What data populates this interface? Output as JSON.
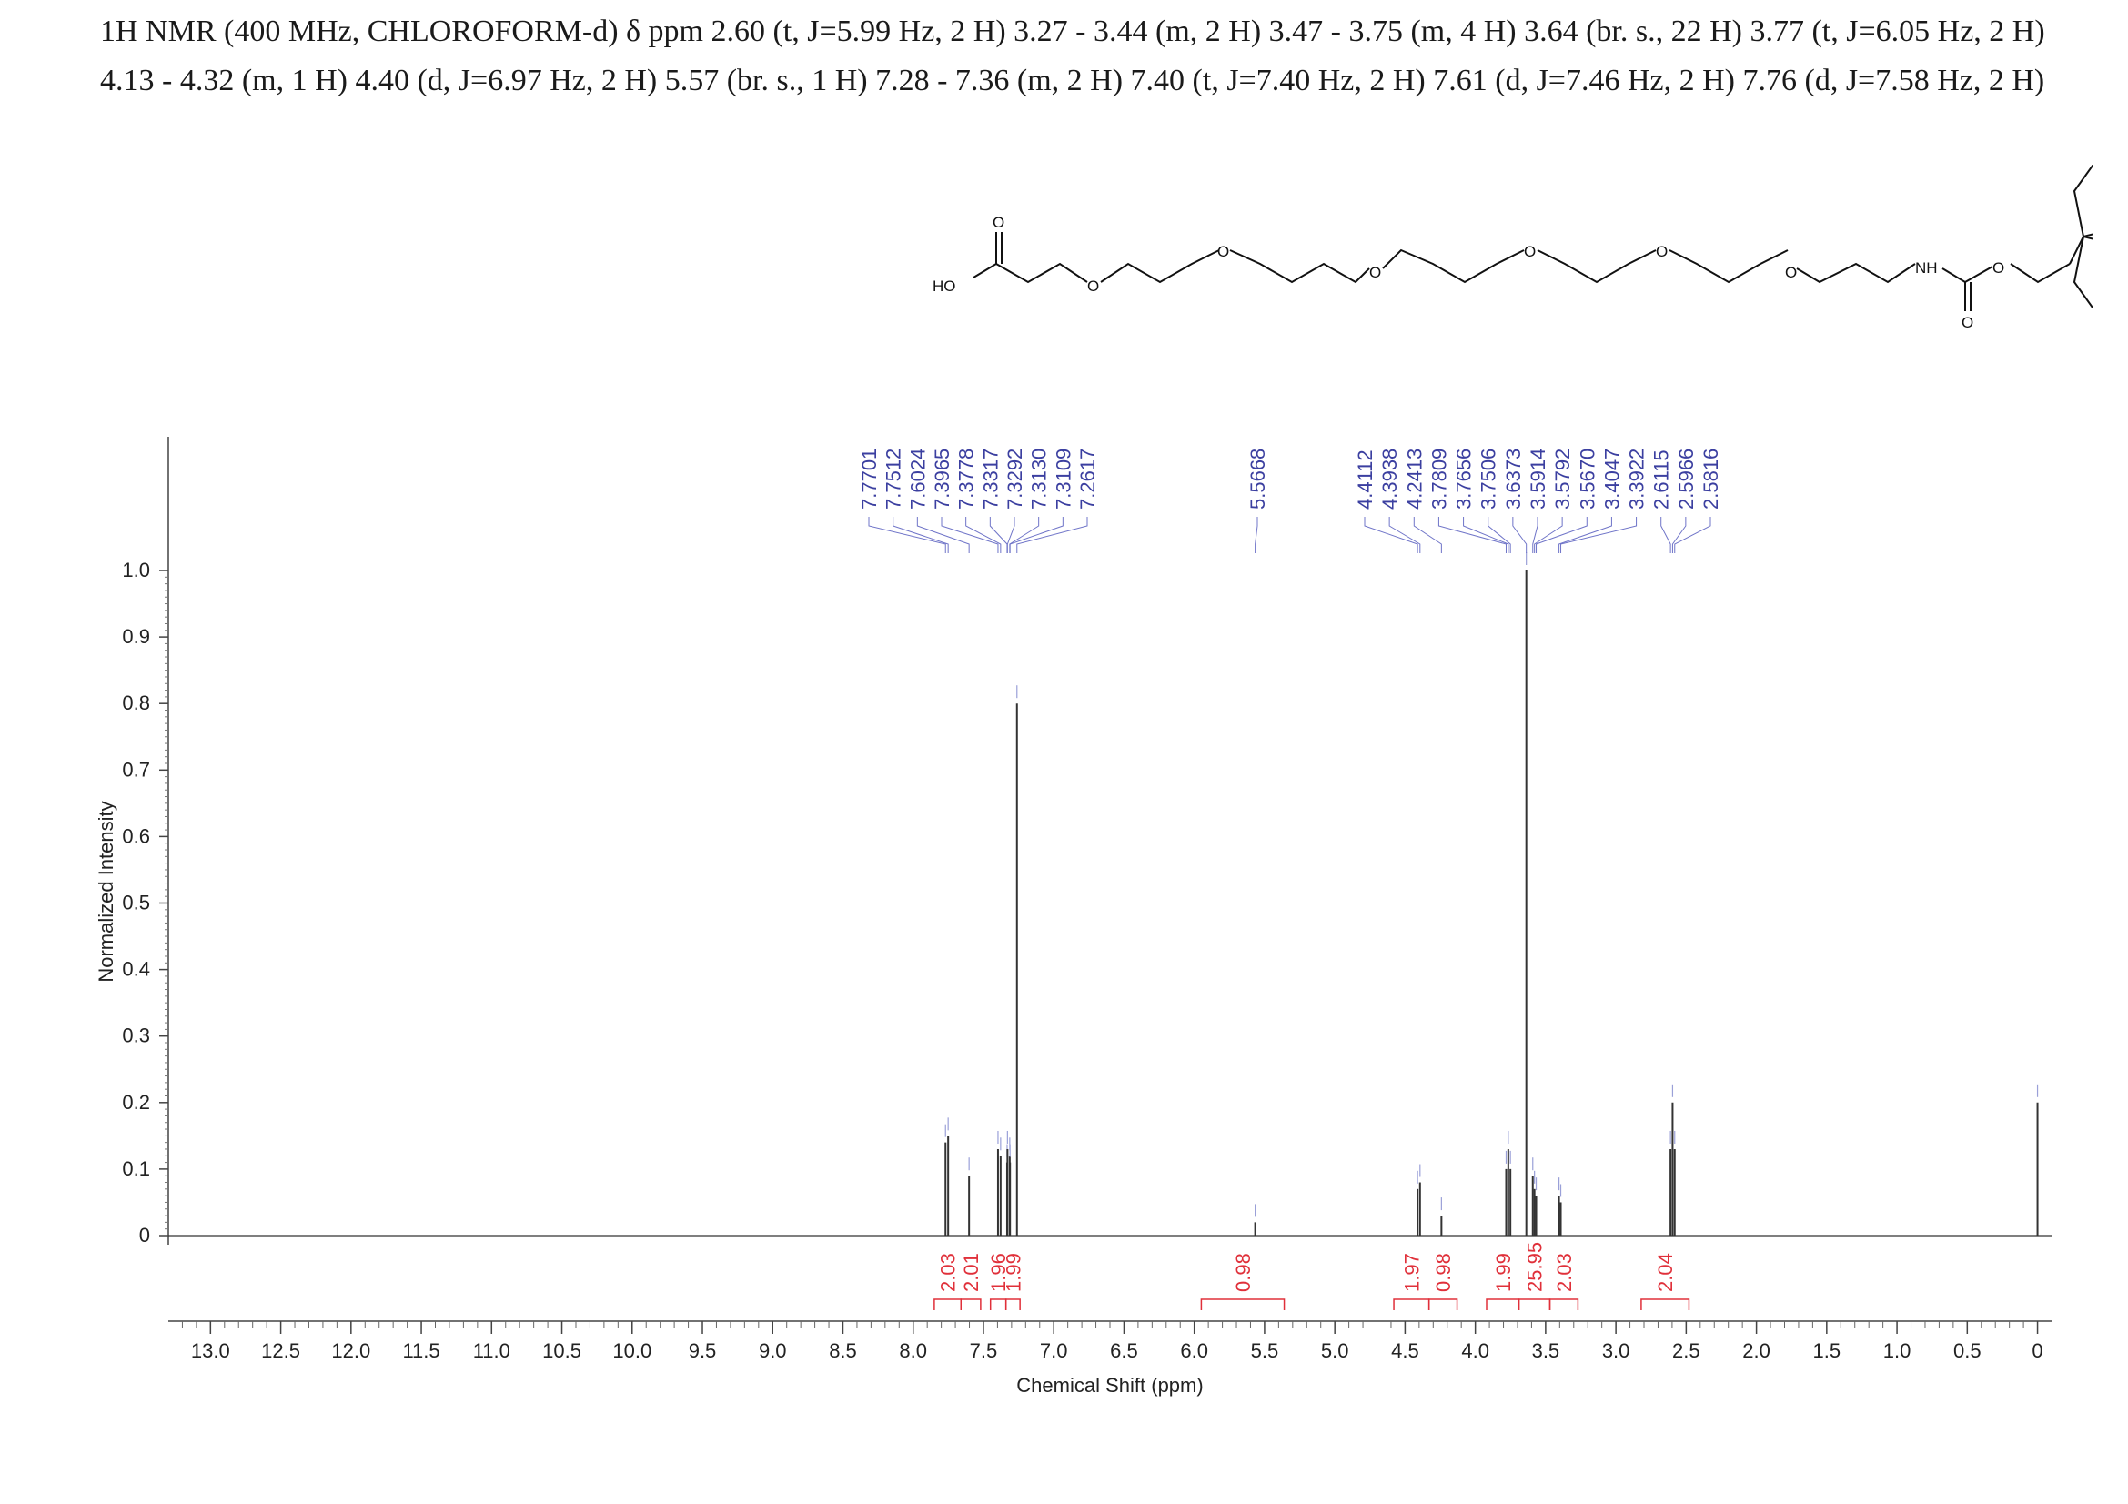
{
  "header": {
    "line1": "1H NMR (400 MHz, CHLOROFORM-d) δ ppm 2.60 (t, J=5.99 Hz, 2 H) 3.27 - 3.44 (m, 2 H) 3.47 - 3.75 (m, 4 H) 3.64 (br. s., 22 H) 3.77 (t,  J=6.05 Hz, 2 H)",
    "line2": "4.13 - 4.32 (m, 1 H) 4.40 (d, J=6.97 Hz, 2 H) 5.57 (br. s., 1 H) 7.28 - 7.36 (m, 2 H) 7.40 (t,  J=7.40 Hz, 2 H) 7.61 (d, J=7.46 Hz, 2 H) 7.76 (d, J=7.58 Hz, 2 H)"
  },
  "structure": {
    "atoms": {
      "ho": "HO",
      "o": "O",
      "nh": "NH"
    }
  },
  "chart_data": {
    "type": "line",
    "xlabel": "Chemical Shift (ppm)",
    "ylabel": "Normalized Intensity",
    "xlim": [
      13.3,
      -0.1
    ],
    "ylim": [
      0,
      1.0
    ],
    "x_reversed": true,
    "x_ticks": [
      "13.0",
      "12.5",
      "12.0",
      "11.5",
      "11.0",
      "10.5",
      "10.0",
      "9.5",
      "9.0",
      "8.5",
      "8.0",
      "7.5",
      "7.0",
      "6.5",
      "6.0",
      "5.5",
      "5.0",
      "4.5",
      "4.0",
      "3.5",
      "3.0",
      "2.5",
      "2.0",
      "1.5",
      "1.0",
      "0.5",
      "0"
    ],
    "y_ticks": [
      "0",
      "0.1",
      "0.2",
      "0.3",
      "0.4",
      "0.5",
      "0.6",
      "0.7",
      "0.8",
      "0.9",
      "1.0"
    ],
    "peaks": [
      {
        "x": 7.7701,
        "y": 0.14
      },
      {
        "x": 7.7512,
        "y": 0.15
      },
      {
        "x": 7.6024,
        "y": 0.09
      },
      {
        "x": 7.3965,
        "y": 0.13
      },
      {
        "x": 7.3778,
        "y": 0.12
      },
      {
        "x": 7.3317,
        "y": 0.11
      },
      {
        "x": 7.3292,
        "y": 0.13
      },
      {
        "x": 7.313,
        "y": 0.12
      },
      {
        "x": 7.3109,
        "y": 0.11
      },
      {
        "x": 7.2617,
        "y": 0.8
      },
      {
        "x": 5.5668,
        "y": 0.02
      },
      {
        "x": 4.4112,
        "y": 0.07
      },
      {
        "x": 4.3938,
        "y": 0.08
      },
      {
        "x": 4.2413,
        "y": 0.03
      },
      {
        "x": 3.7809,
        "y": 0.1
      },
      {
        "x": 3.7656,
        "y": 0.13
      },
      {
        "x": 3.7506,
        "y": 0.1
      },
      {
        "x": 3.6373,
        "y": 1.0
      },
      {
        "x": 3.5914,
        "y": 0.09
      },
      {
        "x": 3.5792,
        "y": 0.07
      },
      {
        "x": 3.567,
        "y": 0.06
      },
      {
        "x": 3.4047,
        "y": 0.06
      },
      {
        "x": 3.3922,
        "y": 0.05
      },
      {
        "x": 2.6115,
        "y": 0.13
      },
      {
        "x": 2.5966,
        "y": 0.2
      },
      {
        "x": 2.5816,
        "y": 0.13
      },
      {
        "x": 0.0,
        "y": 0.2
      }
    ],
    "peak_labels": [
      {
        "group": 1,
        "labels": [
          "7.7701",
          "7.7512",
          "7.6024",
          "7.3965",
          "7.3778",
          "7.3317",
          "7.3292",
          "7.3130",
          "7.3109",
          "7.2617"
        ]
      },
      {
        "group": 2,
        "labels": [
          "5.5668"
        ]
      },
      {
        "group": 3,
        "labels": [
          "4.4112",
          "4.3938",
          "4.2413",
          "3.7809",
          "3.7656",
          "3.7506",
          "3.6373",
          "3.5914",
          "3.5792",
          "3.5670",
          "3.4047",
          "3.3922",
          "2.6115",
          "2.5966",
          "2.5816"
        ]
      }
    ],
    "integrals": [
      {
        "label": "2.03",
        "from": 7.85,
        "to": 7.66
      },
      {
        "label": "2.01",
        "from": 7.66,
        "to": 7.52
      },
      {
        "label": "1.96",
        "from": 7.45,
        "to": 7.34
      },
      {
        "label": "1.99",
        "from": 7.34,
        "to": 7.24
      },
      {
        "label": "0.98",
        "from": 5.95,
        "to": 5.36
      },
      {
        "label": "1.97",
        "from": 4.58,
        "to": 4.33
      },
      {
        "label": "0.98",
        "from": 4.33,
        "to": 4.13
      },
      {
        "label": "1.99",
        "from": 3.92,
        "to": 3.69
      },
      {
        "label": "25.95",
        "from": 3.69,
        "to": 3.47
      },
      {
        "label": "2.03",
        "from": 3.47,
        "to": 3.27
      },
      {
        "label": "2.04",
        "from": 2.82,
        "to": 2.48
      }
    ],
    "colors": {
      "spectrum": "#333333",
      "peak_label": "#3b3fa0",
      "integral": "#e0303a"
    }
  }
}
